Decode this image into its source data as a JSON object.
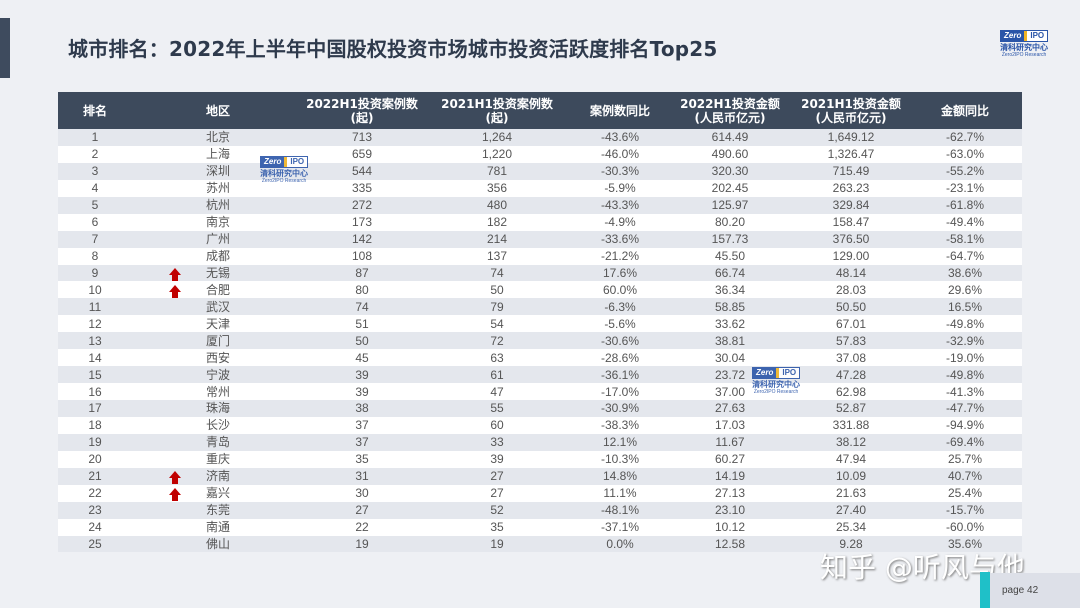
{
  "title": "城市排名：2022年上半年中国股权投资市场城市投资活跃度排名Top25",
  "logo": {
    "badge_left": "Zero",
    "badge_right": "IPO",
    "cn": "清科研究中心",
    "en": "Zero2IPO Research"
  },
  "table": {
    "headers": [
      {
        "line1": "排名",
        "line2": ""
      },
      {
        "line1": "地区",
        "line2": ""
      },
      {
        "line1": "2022H1投资案例数",
        "line2": "(起)"
      },
      {
        "line1": "2021H1投资案例数",
        "line2": "(起)"
      },
      {
        "line1": "案例数同比",
        "line2": ""
      },
      {
        "line1": "2022H1投资金额",
        "line2": "(人民币亿元)"
      },
      {
        "line1": "2021H1投资金额",
        "line2": "(人民币亿元)"
      },
      {
        "line1": "金额同比",
        "line2": ""
      }
    ],
    "rows": [
      [
        "1",
        "北京",
        "713",
        "1,264",
        "-43.6%",
        "614.49",
        "1,649.12",
        "-62.7%"
      ],
      [
        "2",
        "上海",
        "659",
        "1,220",
        "-46.0%",
        "490.60",
        "1,326.47",
        "-63.0%"
      ],
      [
        "3",
        "深圳",
        "544",
        "781",
        "-30.3%",
        "320.30",
        "715.49",
        "-55.2%"
      ],
      [
        "4",
        "苏州",
        "335",
        "356",
        "-5.9%",
        "202.45",
        "263.23",
        "-23.1%"
      ],
      [
        "5",
        "杭州",
        "272",
        "480",
        "-43.3%",
        "125.97",
        "329.84",
        "-61.8%"
      ],
      [
        "6",
        "南京",
        "173",
        "182",
        "-4.9%",
        "80.20",
        "158.47",
        "-49.4%"
      ],
      [
        "7",
        "广州",
        "142",
        "214",
        "-33.6%",
        "157.73",
        "376.50",
        "-58.1%"
      ],
      [
        "8",
        "成都",
        "108",
        "137",
        "-21.2%",
        "45.50",
        "129.00",
        "-64.7%"
      ],
      [
        "9",
        "无锡",
        "87",
        "74",
        "17.6%",
        "66.74",
        "48.14",
        "38.6%"
      ],
      [
        "10",
        "合肥",
        "80",
        "50",
        "60.0%",
        "36.34",
        "28.03",
        "29.6%"
      ],
      [
        "11",
        "武汉",
        "74",
        "79",
        "-6.3%",
        "58.85",
        "50.50",
        "16.5%"
      ],
      [
        "12",
        "天津",
        "51",
        "54",
        "-5.6%",
        "33.62",
        "67.01",
        "-49.8%"
      ],
      [
        "13",
        "厦门",
        "50",
        "72",
        "-30.6%",
        "38.81",
        "57.83",
        "-32.9%"
      ],
      [
        "14",
        "西安",
        "45",
        "63",
        "-28.6%",
        "30.04",
        "37.08",
        "-19.0%"
      ],
      [
        "15",
        "宁波",
        "39",
        "61",
        "-36.1%",
        "23.72",
        "47.28",
        "-49.8%"
      ],
      [
        "16",
        "常州",
        "39",
        "47",
        "-17.0%",
        "37.00",
        "62.98",
        "-41.3%"
      ],
      [
        "17",
        "珠海",
        "38",
        "55",
        "-30.9%",
        "27.63",
        "52.87",
        "-47.7%"
      ],
      [
        "18",
        "长沙",
        "37",
        "60",
        "-38.3%",
        "17.03",
        "331.88",
        "-94.9%"
      ],
      [
        "19",
        "青岛",
        "37",
        "33",
        "12.1%",
        "11.67",
        "38.12",
        "-69.4%"
      ],
      [
        "20",
        "重庆",
        "35",
        "39",
        "-10.3%",
        "60.27",
        "47.94",
        "25.7%"
      ],
      [
        "21",
        "济南",
        "31",
        "27",
        "14.8%",
        "14.19",
        "10.09",
        "40.7%"
      ],
      [
        "22",
        "嘉兴",
        "30",
        "27",
        "11.1%",
        "27.13",
        "21.63",
        "25.4%"
      ],
      [
        "23",
        "东莞",
        "27",
        "52",
        "-48.1%",
        "23.10",
        "27.40",
        "-15.7%"
      ],
      [
        "24",
        "南通",
        "22",
        "35",
        "-37.1%",
        "10.12",
        "25.34",
        "-60.0%"
      ],
      [
        "25",
        "佛山",
        "19",
        "19",
        "0.0%",
        "12.58",
        "9.28",
        "35.6%"
      ]
    ],
    "rank_up_rows": [
      "9",
      "10",
      "21",
      "22"
    ],
    "up_arrow_color": "#c00000"
  },
  "watermark": "知乎 @听风与他",
  "page": "page  42",
  "colors": {
    "header_bg": "#3d4a5c",
    "accent_teal": "#1fc0c8",
    "logo_blue": "#2a55a8"
  }
}
